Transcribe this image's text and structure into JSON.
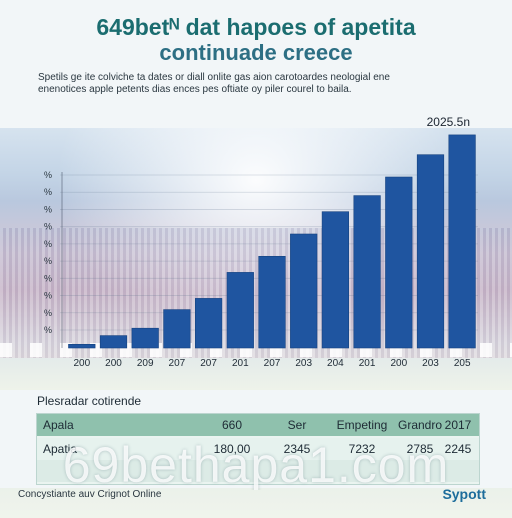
{
  "header": {
    "title_line1": "649betᴺ dat hapoes of apetita",
    "title_line2": "continuade creece",
    "description_line1": "Spetils ge ite colviche ta dates or diall onlite gas aion carotoardes neologial ene",
    "description_line2": "enenotices apple petents dias ences pes oftiate oy piler courel to baila."
  },
  "chart_data": {
    "type": "bar",
    "categories": [
      "200",
      "200",
      "209",
      "207",
      "207",
      "201",
      "207",
      "203",
      "204",
      "201",
      "200",
      "203",
      "205"
    ],
    "values": [
      3,
      10,
      16,
      31,
      40,
      61,
      74,
      92,
      110,
      123,
      138,
      156,
      172
    ],
    "y_tick_labels": [
      "%",
      "%",
      "%",
      "%",
      "%",
      "%",
      "%",
      "%",
      "%",
      "%"
    ],
    "annotation": "2025.5n",
    "ylim": [
      0,
      180
    ],
    "bar_color": "#1f55a0",
    "grid": true,
    "title": "",
    "xlabel": "",
    "ylabel": ""
  },
  "table": {
    "title": "Plesradar cotirende",
    "headers": [
      "Apala",
      "660",
      "Ser",
      "Empeting",
      "Grandro",
      "2017"
    ],
    "rows": [
      [
        "Apatia",
        "180,00",
        "2345",
        "7232",
        "2785",
        "2245"
      ],
      [
        "",
        "",
        "",
        "",
        "",
        ""
      ]
    ]
  },
  "watermark": "69bethapa1.com",
  "footer": {
    "left": "Concystiante auv Crignot Online",
    "right": "Sypott"
  }
}
